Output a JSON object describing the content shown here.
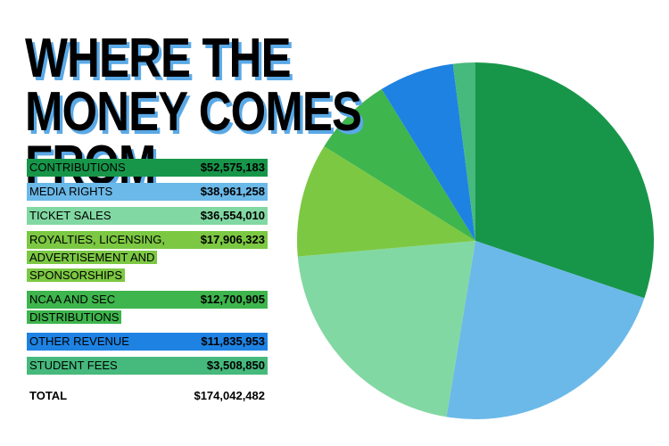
{
  "chart_data": {
    "type": "pie",
    "title": "WHERE THE MONEY COMES FROM",
    "categories": [
      "CONTRIBUTIONS",
      "MEDIA RIGHTS",
      "TICKET SALES",
      "ROYALTIES, LICENSING, ADVERTISEMENT AND SPONSORSHIPS",
      "NCAA AND SEC DISTRIBUTIONS",
      "OTHER REVENUE",
      "STUDENT FEES"
    ],
    "values": [
      52575183,
      38961258,
      36554010,
      17906323,
      12700905,
      11835953,
      3508850
    ],
    "value_labels": [
      "$52,575,183",
      "$38,961,258",
      "$36,554,010",
      "$17,906,323",
      "$12,700,905",
      "$11,835,953",
      "$3,508,850"
    ],
    "colors": [
      "#17964a",
      "#6bb9e8",
      "#82d8a2",
      "#7cc843",
      "#3eb54d",
      "#1e82e2",
      "#46b97c"
    ],
    "total_label": "TOTAL",
    "total": 174042482,
    "total_value_label": "$174,042,482"
  }
}
